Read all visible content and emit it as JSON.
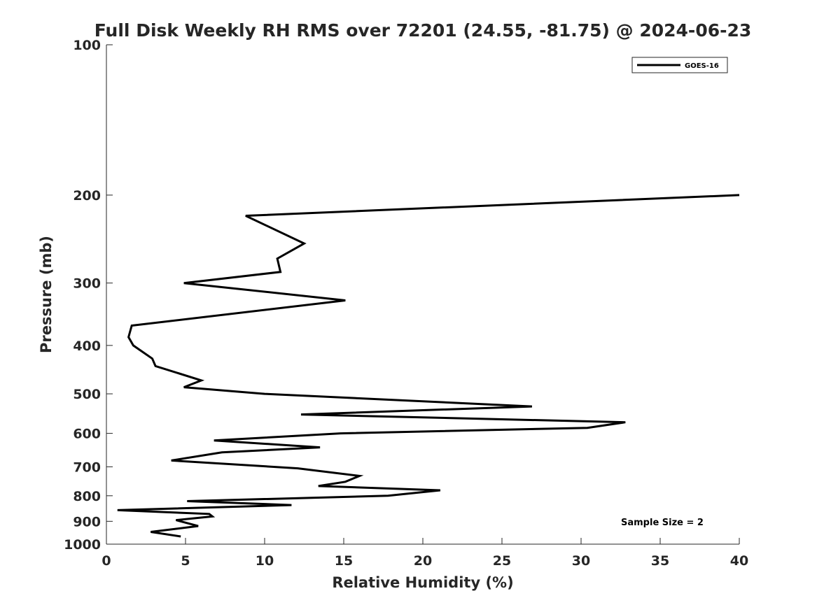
{
  "chart_data": {
    "type": "line",
    "title": "Full Disk Weekly RH RMS over 72201 (24.55, -81.75) @ 2024-06-23",
    "xlabel": "Relative Humidity (%)",
    "ylabel": "Pressure (mb)",
    "xlim": [
      0,
      40
    ],
    "ylim": [
      100,
      1000
    ],
    "y_scale": "log",
    "y_reversed": true,
    "x_ticks": [
      0,
      5,
      10,
      15,
      20,
      25,
      30,
      35,
      40
    ],
    "x_tick_labels": [
      "0",
      "5",
      "10",
      "15",
      "20",
      "25",
      "30",
      "35",
      "40"
    ],
    "y_ticks": [
      100,
      200,
      300,
      400,
      500,
      600,
      700,
      800,
      900,
      1000
    ],
    "y_tick_labels": [
      "100",
      "200",
      "300",
      "400",
      "500",
      "600",
      "700",
      "800",
      "900",
      "1000"
    ],
    "grid": false,
    "legend_position": "top-right",
    "line_color": "#000000",
    "series": [
      {
        "name": "GOES-16",
        "points": [
          [
            40.0,
            200
          ],
          [
            8.8,
            220
          ],
          [
            12.5,
            250
          ],
          [
            10.8,
            268
          ],
          [
            11.0,
            285
          ],
          [
            4.9,
            300
          ],
          [
            15.1,
            325
          ],
          [
            1.6,
            365
          ],
          [
            1.4,
            385
          ],
          [
            1.7,
            400
          ],
          [
            2.9,
            425
          ],
          [
            3.1,
            440
          ],
          [
            6.0,
            470
          ],
          [
            4.9,
            485
          ],
          [
            10.0,
            500
          ],
          [
            26.9,
            530
          ],
          [
            12.3,
            550
          ],
          [
            32.8,
            570
          ],
          [
            30.4,
            585
          ],
          [
            14.8,
            600
          ],
          [
            6.8,
            620
          ],
          [
            13.5,
            640
          ],
          [
            7.3,
            655
          ],
          [
            4.1,
            680
          ],
          [
            12.1,
            705
          ],
          [
            16.0,
            730
          ],
          [
            15.1,
            750
          ],
          [
            13.4,
            765
          ],
          [
            21.1,
            780
          ],
          [
            17.8,
            800
          ],
          [
            5.1,
            820
          ],
          [
            11.7,
            835
          ],
          [
            0.7,
            855
          ],
          [
            6.5,
            870
          ],
          [
            6.7,
            880
          ],
          [
            4.4,
            895
          ],
          [
            5.8,
            920
          ],
          [
            2.8,
            945
          ],
          [
            4.7,
            965
          ]
        ]
      }
    ],
    "annotations": [
      "Sample Size = 2"
    ]
  }
}
